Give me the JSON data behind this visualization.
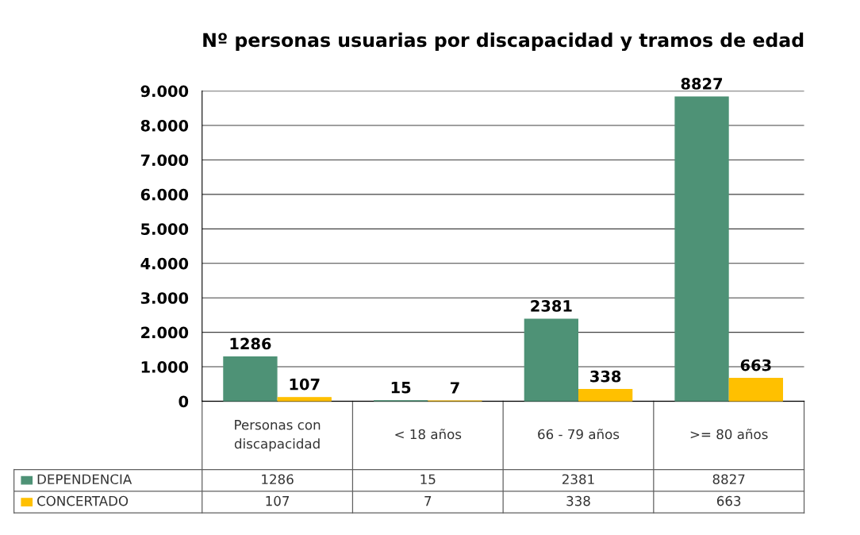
{
  "chart_data": {
    "type": "bar",
    "title": "Nº personas usuarias por discapacidad y tramos de edad",
    "categories": [
      "Personas con discapacidad",
      "< 18 años",
      "66 - 79 años",
      ">= 80 años"
    ],
    "series": [
      {
        "name": "DEPENDENCIA",
        "color": "#4e9276",
        "values": [
          1286,
          15,
          2381,
          8827
        ],
        "value_labels": [
          "1286",
          "15",
          "2381",
          "8827"
        ]
      },
      {
        "name": "CONCERTADO",
        "color": "#ffc000",
        "values": [
          107,
          7,
          338,
          663
        ],
        "value_labels": [
          "107",
          "7",
          "338",
          "663"
        ]
      }
    ],
    "ylim": [
      0,
      9000
    ],
    "yticks": [
      {
        "value": 0,
        "label": "0"
      },
      {
        "value": 1000,
        "label": "1.000"
      },
      {
        "value": 2000,
        "label": "2.000"
      },
      {
        "value": 3000,
        "label": "3.000"
      },
      {
        "value": 4000,
        "label": "4.000"
      },
      {
        "value": 5000,
        "label": "5.000"
      },
      {
        "value": 6000,
        "label": "6.000"
      },
      {
        "value": 7000,
        "label": "7.000"
      },
      {
        "value": 8000,
        "label": "8.000"
      },
      {
        "value": 9000,
        "label": "9.000"
      }
    ],
    "annotations": [
      "1286",
      "15",
      "2381",
      "8827",
      "107",
      "7",
      "338",
      "663"
    ],
    "grid": "y",
    "legend": "bottom"
  }
}
